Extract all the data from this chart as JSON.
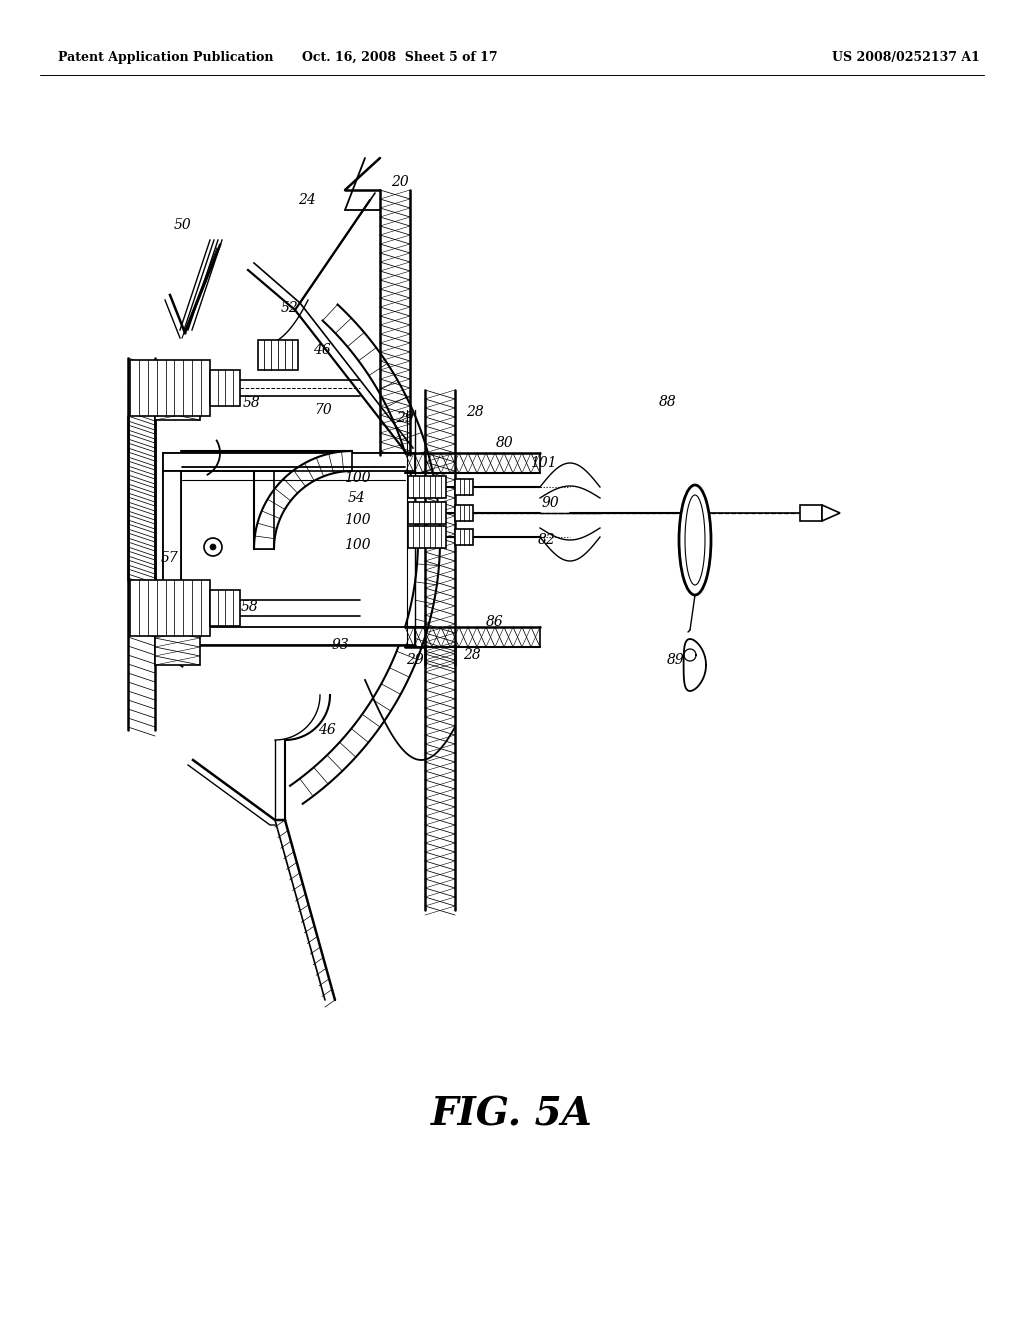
{
  "header_left": "Patent Application Publication",
  "header_mid": "Oct. 16, 2008  Sheet 5 of 17",
  "header_right": "US 2008/0252137 A1",
  "figure_label": "FIG. 5A",
  "bg_color": "#ffffff"
}
